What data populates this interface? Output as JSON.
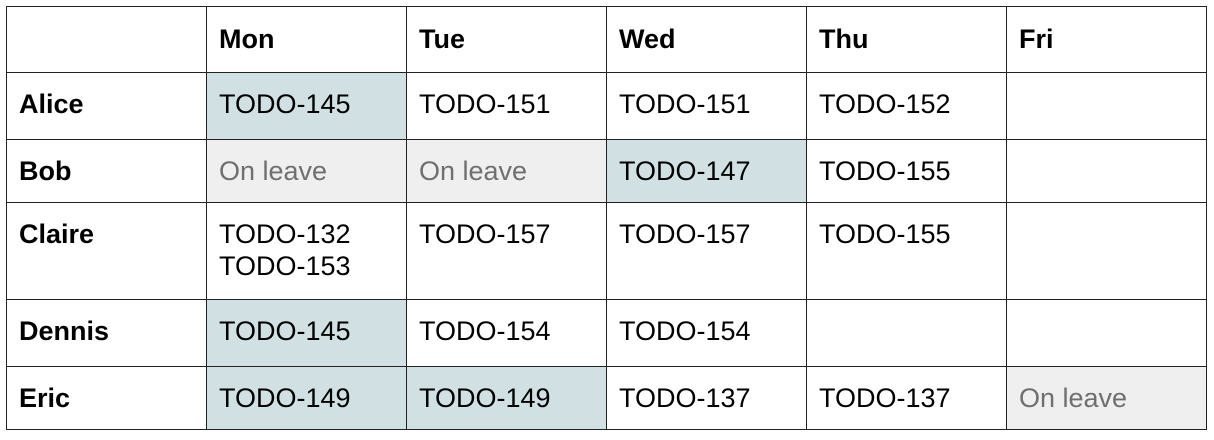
{
  "colors": {
    "assigned_highlight": "#d0e0e3",
    "leave_background": "#efefef",
    "leave_text": "#6f6f6f",
    "border": "#222222"
  },
  "table": {
    "corner": "",
    "days": [
      "Mon",
      "Tue",
      "Wed",
      "Thu",
      "Fri"
    ],
    "rows": [
      {
        "name": "Alice",
        "cells": [
          {
            "lines": [
              "TODO-145"
            ],
            "style": "highlight"
          },
          {
            "lines": [
              "TODO-151"
            ],
            "style": "plain"
          },
          {
            "lines": [
              "TODO-151"
            ],
            "style": "plain"
          },
          {
            "lines": [
              "TODO-152"
            ],
            "style": "plain"
          },
          {
            "lines": [],
            "style": "plain"
          }
        ]
      },
      {
        "name": "Bob",
        "cells": [
          {
            "lines": [
              "On leave"
            ],
            "style": "leave"
          },
          {
            "lines": [
              "On leave"
            ],
            "style": "leave"
          },
          {
            "lines": [
              "TODO-147"
            ],
            "style": "highlight"
          },
          {
            "lines": [
              "TODO-155"
            ],
            "style": "plain"
          },
          {
            "lines": [],
            "style": "plain"
          }
        ]
      },
      {
        "name": "Claire",
        "cells": [
          {
            "lines": [
              "TODO-132",
              "TODO-153"
            ],
            "style": "plain"
          },
          {
            "lines": [
              "TODO-157"
            ],
            "style": "plain"
          },
          {
            "lines": [
              "TODO-157"
            ],
            "style": "plain"
          },
          {
            "lines": [
              "TODO-155"
            ],
            "style": "plain"
          },
          {
            "lines": [],
            "style": "plain"
          }
        ]
      },
      {
        "name": "Dennis",
        "cells": [
          {
            "lines": [
              "TODO-145"
            ],
            "style": "highlight"
          },
          {
            "lines": [
              "TODO-154"
            ],
            "style": "plain"
          },
          {
            "lines": [
              "TODO-154"
            ],
            "style": "plain"
          },
          {
            "lines": [],
            "style": "plain"
          },
          {
            "lines": [],
            "style": "plain"
          }
        ]
      },
      {
        "name": "Eric",
        "cells": [
          {
            "lines": [
              "TODO-149"
            ],
            "style": "highlight"
          },
          {
            "lines": [
              "TODO-149"
            ],
            "style": "highlight"
          },
          {
            "lines": [
              "TODO-137"
            ],
            "style": "plain"
          },
          {
            "lines": [
              "TODO-137"
            ],
            "style": "plain"
          },
          {
            "lines": [
              "On leave"
            ],
            "style": "leave"
          }
        ]
      }
    ]
  }
}
